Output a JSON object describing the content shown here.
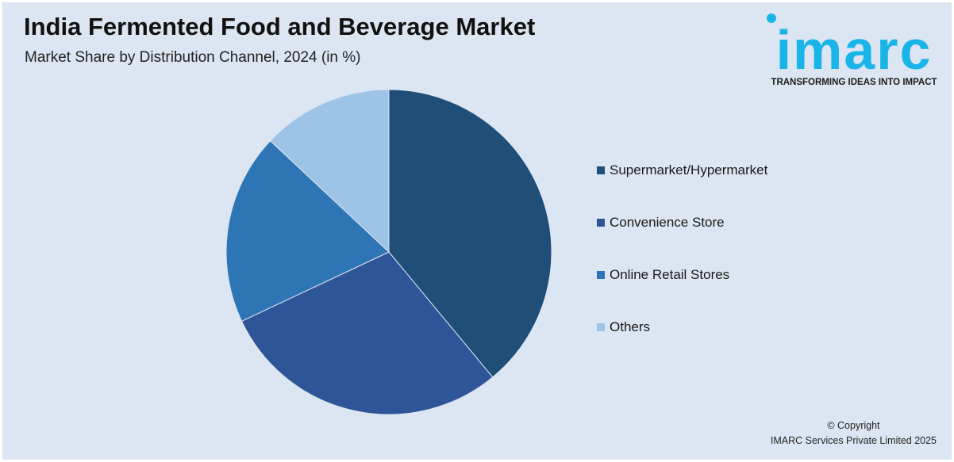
{
  "header": {
    "title": "India Fermented Food and Beverage Market",
    "subtitle": "Market Share by Distribution Channel, 2024 (in %)"
  },
  "logo": {
    "word": "imarc",
    "tagline": "TRANSFORMING IDEAS INTO IMPACT",
    "color": "#19b5e8"
  },
  "chart_data": {
    "type": "pie",
    "title": "India Fermented Food and Beverage Market",
    "subtitle": "Market Share by Distribution Channel, 2024 (in %)",
    "categories": [
      "Supermarket/Hypermarket",
      "Convenience Store",
      "Online Retail Stores",
      "Others"
    ],
    "values": [
      39,
      29,
      19,
      13
    ],
    "colors": [
      "#1f4e79",
      "#2e5597",
      "#2e75b6",
      "#9dc3e6"
    ],
    "legend_position": "right",
    "start_angle": "12 o'clock",
    "direction": "clockwise"
  },
  "footer": {
    "copyright_line1": "© Copyright",
    "copyright_line2": "IMARC Services Private Limited 2025"
  }
}
